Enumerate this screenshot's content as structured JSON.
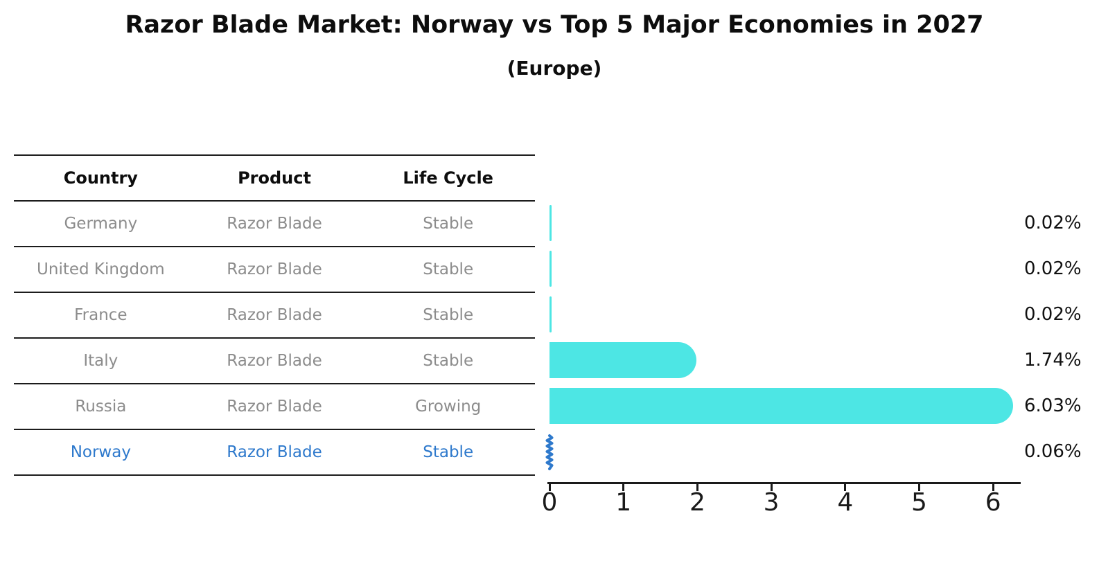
{
  "title": "Razor Blade Market: Norway vs Top 5 Major Economies in 2027",
  "subtitle": "(Europe)",
  "table": {
    "headers": [
      "Country",
      "Product",
      "Life Cycle"
    ],
    "rows": [
      {
        "country": "Germany",
        "product": "Razor Blade",
        "life_cycle": "Stable",
        "highlight": false
      },
      {
        "country": "United Kingdom",
        "product": "Razor Blade",
        "life_cycle": "Stable",
        "highlight": false
      },
      {
        "country": "France",
        "product": "Razor Blade",
        "life_cycle": "Stable",
        "highlight": false
      },
      {
        "country": "Italy",
        "product": "Razor Blade",
        "life_cycle": "Stable",
        "highlight": false
      },
      {
        "country": "Russia",
        "product": "Razor Blade",
        "life_cycle": "Growing",
        "highlight": false
      },
      {
        "country": "Norway",
        "product": "Razor Blade",
        "life_cycle": "Stable",
        "highlight": true
      }
    ]
  },
  "chart_data": {
    "type": "bar",
    "orientation": "horizontal",
    "title": "Razor Blade Market: Norway vs Top 5 Major Economies in 2027",
    "subtitle": "(Europe)",
    "categories": [
      "Germany",
      "United Kingdom",
      "France",
      "Italy",
      "Russia",
      "Norway"
    ],
    "values": [
      0.02,
      0.02,
      0.02,
      1.74,
      6.03,
      0.06
    ],
    "value_labels": [
      "0.02%",
      "0.02%",
      "0.02%",
      "1.74%",
      "6.03%",
      "0.06%"
    ],
    "x_ticks": [
      "0",
      "1",
      "2",
      "3",
      "4",
      "5",
      "6"
    ],
    "xlim": [
      0,
      6.4
    ],
    "grid": false,
    "legend": false,
    "highlight_index": 5,
    "bar_color": "#4de6e4",
    "highlight_color": "#2e79cc",
    "text_color_muted": "#8c8c8c",
    "text_color_dark": "#111111"
  }
}
